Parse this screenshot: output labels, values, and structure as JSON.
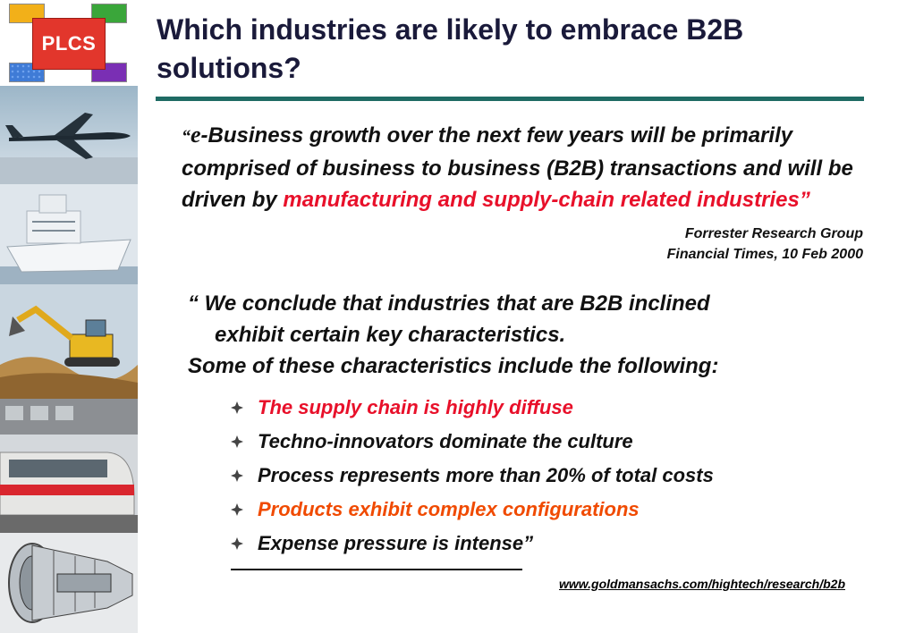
{
  "logo": {
    "text": "PLCS"
  },
  "title": "Which industries are likely to embrace B2B solutions?",
  "sidebar_images": [
    "airplane",
    "ship",
    "excavator",
    "train",
    "jet-engine"
  ],
  "quote": {
    "open_mark": "“",
    "e": "e",
    "text_black": "-Business growth over the next few years will be primarily comprised of business to business (B2B) transactions and will be driven by ",
    "text_red": "manufacturing and supply-chain related industries",
    "close_mark": "”"
  },
  "source": {
    "line1": "Forrester Research Group",
    "line2": "Financial Times, 10 Feb 2000"
  },
  "body": {
    "line1": "“ We conclude that industries that are B2B inclined",
    "line2": "exhibit certain key characteristics.",
    "line3": "Some of these characteristics include the following:"
  },
  "bullets": [
    {
      "text": "The supply chain is highly diffuse",
      "color": "#e8102a"
    },
    {
      "text": "Techno-innovators dominate the culture",
      "color": "#111111"
    },
    {
      "text": "Process represents more than 20% of total costs",
      "color": "#111111"
    },
    {
      "text": "Products exhibit complex configurations",
      "color": "#f04a00"
    },
    {
      "text": "Expense pressure is intense”",
      "color": "#111111"
    }
  ],
  "link": "www.goldmansachs.com/hightech/research/b2b",
  "colors": {
    "title_rule": "#1f6b64",
    "red": "#e8102a",
    "orange": "#f04a00"
  }
}
